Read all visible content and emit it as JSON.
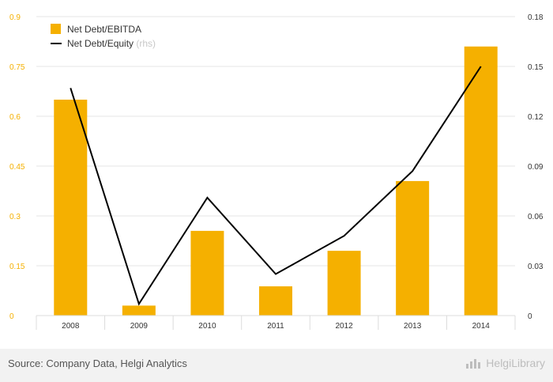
{
  "chart_data": {
    "type": "bar",
    "categories": [
      "2008",
      "2009",
      "2010",
      "2011",
      "2012",
      "2013",
      "2014"
    ],
    "series": [
      {
        "name": "Net Debt/EBITDA",
        "type": "bar",
        "axis": "left",
        "color": "#f5b000",
        "values": [
          0.65,
          0.03,
          0.255,
          0.088,
          0.195,
          0.405,
          0.81
        ]
      },
      {
        "name": "Net Debt/Equity",
        "name_suffix": "(rhs)",
        "type": "line",
        "axis": "right",
        "color": "#000000",
        "values": [
          0.137,
          0.007,
          0.071,
          0.025,
          0.048,
          0.087,
          0.15
        ]
      }
    ],
    "y_left": {
      "ylim": [
        0,
        0.9
      ],
      "ticks": [
        "0",
        "0.15",
        "0.3",
        "0.45",
        "0.6",
        "0.75",
        "0.9"
      ],
      "tick_color": "#f5b000"
    },
    "y_right": {
      "ylim": [
        0,
        0.18
      ],
      "ticks": [
        "0",
        "0.03",
        "0.06",
        "0.09",
        "0.12",
        "0.15",
        "0.18"
      ]
    },
    "grid": true,
    "legend": "top-left"
  },
  "footer": {
    "source": "Source: Company Data, Helgi Analytics",
    "brand": "HelgiLibrary",
    "brand_icon": "bar-chart-logo-icon"
  }
}
